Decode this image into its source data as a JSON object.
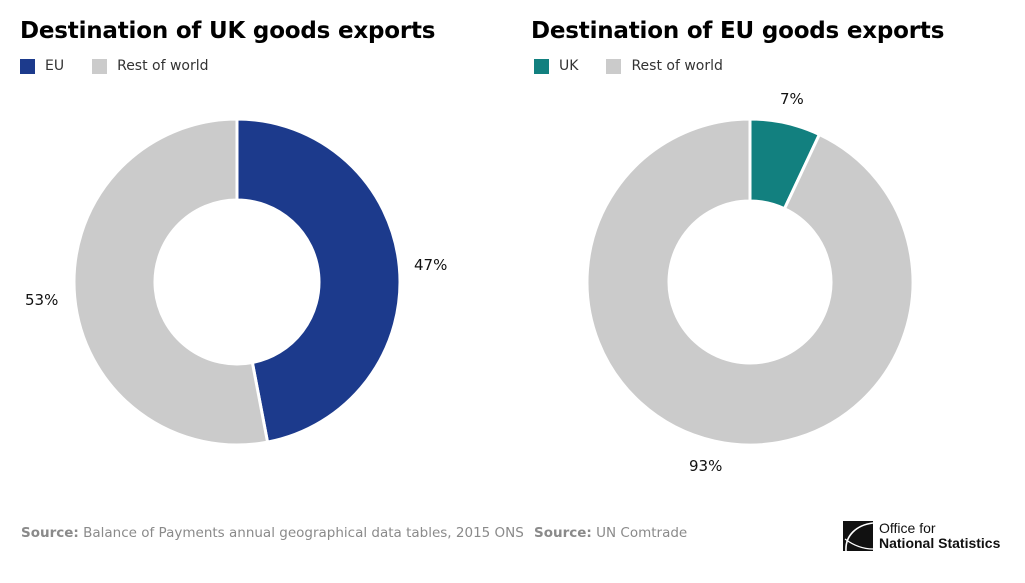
{
  "charts": [
    {
      "title": "Destination of UK goods exports",
      "legend": [
        {
          "label": "EU",
          "color": "#1c3a8c"
        },
        {
          "label": "Rest of world",
          "color": "#cbcbcb"
        }
      ],
      "slices": [
        {
          "label": "EU",
          "value": 47,
          "display": "47%",
          "color": "#1c3a8c"
        },
        {
          "label": "Rest of world",
          "value": 53,
          "display": "53%",
          "color": "#cbcbcb"
        }
      ],
      "source_label": "Source:",
      "source_text": "Balance of Payments annual geographical data tables, 2015 ONS"
    },
    {
      "title": "Destination of EU goods exports",
      "legend": [
        {
          "label": "UK",
          "color": "#12807f"
        },
        {
          "label": "Rest of world",
          "color": "#cbcbcb"
        }
      ],
      "slices": [
        {
          "label": "UK",
          "value": 7,
          "display": "7%",
          "color": "#12807f"
        },
        {
          "label": "Rest of world",
          "value": 93,
          "display": "93%",
          "color": "#cbcbcb"
        }
      ],
      "source_label": "Source:",
      "source_text": "UN Comtrade"
    }
  ],
  "logo": {
    "line1": "Office for",
    "line2": "National Statistics"
  },
  "chart_data": [
    {
      "type": "pie",
      "title": "Destination of UK goods exports",
      "categories": [
        "EU",
        "Rest of world"
      ],
      "values": [
        47,
        53
      ],
      "unit": "%",
      "donut": true,
      "legend_position": "top-left",
      "source": "Balance of Payments annual geographical data tables, 2015 ONS"
    },
    {
      "type": "pie",
      "title": "Destination of EU goods exports",
      "categories": [
        "UK",
        "Rest of world"
      ],
      "values": [
        7,
        93
      ],
      "unit": "%",
      "donut": true,
      "legend_position": "top-left",
      "source": "UN Comtrade"
    }
  ]
}
